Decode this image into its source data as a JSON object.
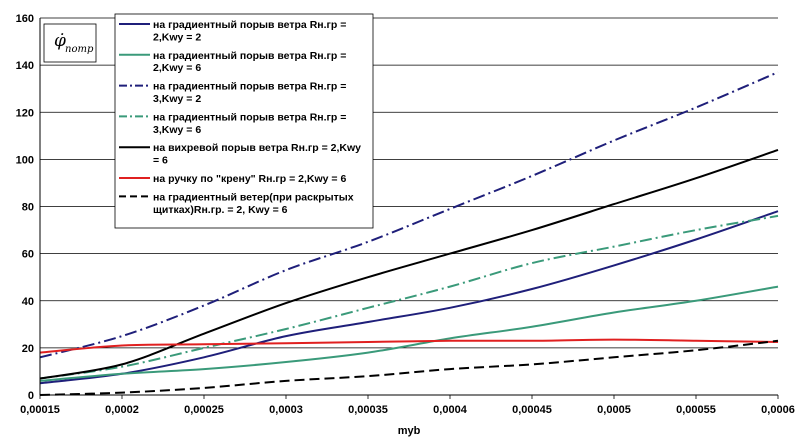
{
  "chart_data": {
    "type": "line",
    "ylabel": "φ̇",
    "ylabel_sub": "потр",
    "xlabel": "myb",
    "xlim": [
      0.00015,
      0.0006
    ],
    "ylim": [
      0,
      160
    ],
    "xticks": [
      0.00015,
      0.0002,
      0.00025,
      0.0003,
      0.00035,
      0.0004,
      0.00045,
      0.0005,
      0.00055,
      0.0006
    ],
    "xtick_labels": [
      "0,00015",
      "0,0002",
      "0,00025",
      "0,0003",
      "0,00035",
      "0,0004",
      "0,00045",
      "0,0005",
      "0,00055",
      "0,0006"
    ],
    "yticks": [
      0,
      20,
      40,
      60,
      80,
      100,
      120,
      140,
      160
    ],
    "ytick_labels": [
      "0",
      "20",
      "40",
      "60",
      "80",
      "100",
      "120",
      "140",
      "160"
    ],
    "grid": "horizontal",
    "legend_position": "top-left",
    "series": [
      {
        "name": "на градиентный порыв ветра Rн.гр = 2,Kwy = 2",
        "legend_lines": [
          "на градиентный порыв ветра Rн.гр =",
          "2,Kwy = 2"
        ],
        "color": "#1f1f7a",
        "dash": "solid",
        "x": [
          0.00015,
          0.0002,
          0.00025,
          0.0003,
          0.00035,
          0.0004,
          0.00045,
          0.0005,
          0.00055,
          0.0006
        ],
        "y": [
          5,
          9,
          16,
          25,
          31,
          37,
          45,
          55,
          66,
          78
        ]
      },
      {
        "name": "на градиентный порыв ветра Rн.гр = 2,Kwy = 6",
        "legend_lines": [
          "на градиентный порыв ветра Rн.гр =",
          "2,Kwy = 6"
        ],
        "color": "#3a9a7a",
        "dash": "solid",
        "x": [
          0.00015,
          0.0002,
          0.00025,
          0.0003,
          0.00035,
          0.0004,
          0.00045,
          0.0005,
          0.00055,
          0.0006
        ],
        "y": [
          6,
          9,
          11,
          14,
          18,
          24,
          29,
          35,
          40,
          46
        ]
      },
      {
        "name": "на градиентный порыв ветра Rн.гр = 3,Kwy = 2",
        "legend_lines": [
          "на градиентный порыв ветра Rн.гр =",
          "3,Kwy = 2"
        ],
        "color": "#1f1f7a",
        "dash": "dashdot",
        "x": [
          0.00015,
          0.0002,
          0.00025,
          0.0003,
          0.00035,
          0.0004,
          0.00045,
          0.0005,
          0.00055,
          0.0006
        ],
        "y": [
          16,
          25,
          38,
          53,
          65,
          79,
          93,
          108,
          122,
          137
        ]
      },
      {
        "name": "на градиентный порыв ветра Rн.гр = 3,Kwy = 6",
        "legend_lines": [
          "на градиентный порыв ветра Rн.гр =",
          "3,Kwy = 6"
        ],
        "color": "#3a9a7a",
        "dash": "dashdot",
        "x": [
          0.00015,
          0.0002,
          0.00025,
          0.0003,
          0.00035,
          0.0004,
          0.00045,
          0.0005,
          0.00055,
          0.0006
        ],
        "y": [
          7,
          12,
          20,
          28,
          37,
          46,
          56,
          63,
          70,
          76
        ]
      },
      {
        "name": "на вихревой порыв ветра Rн.гр = 2,Kwy = 6",
        "legend_lines": [
          "на вихревой порыв ветра Rн.гр = 2,Kwy",
          "= 6"
        ],
        "color": "#000000",
        "dash": "solid",
        "x": [
          0.00015,
          0.0002,
          0.00025,
          0.0003,
          0.00035,
          0.0004,
          0.00045,
          0.0005,
          0.00055,
          0.0006
        ],
        "y": [
          7,
          13,
          26,
          39,
          50,
          60,
          70,
          81,
          92,
          104
        ]
      },
      {
        "name": "на ручку по \"крену\" Rн.гр = 2,Kwy = 6",
        "legend_lines": [
          "на ручку по \"крену\" Rн.гр = 2,Kwy = 6"
        ],
        "color": "#e02020",
        "dash": "solid",
        "x": [
          0.00015,
          0.0002,
          0.00025,
          0.0003,
          0.00035,
          0.0004,
          0.00045,
          0.0005,
          0.00055,
          0.0006
        ],
        "y": [
          18,
          21,
          21.5,
          22,
          22.5,
          23,
          23,
          23.5,
          23,
          22.5
        ]
      },
      {
        "name": "на градиентный ветер(при раскрытых щитках)Rн.гр. = 2, Kwy = 6",
        "legend_lines": [
          "на градиентный ветер(при раскрытых",
          "щитках)Rн.гр. = 2, Kwy = 6"
        ],
        "color": "#000000",
        "dash": "dashed",
        "x": [
          0.00015,
          0.0002,
          0.00025,
          0.0003,
          0.00035,
          0.0004,
          0.00045,
          0.0005,
          0.00055,
          0.0006
        ],
        "y": [
          0,
          1,
          3,
          6,
          8,
          11,
          13,
          16,
          19,
          23
        ]
      }
    ]
  }
}
